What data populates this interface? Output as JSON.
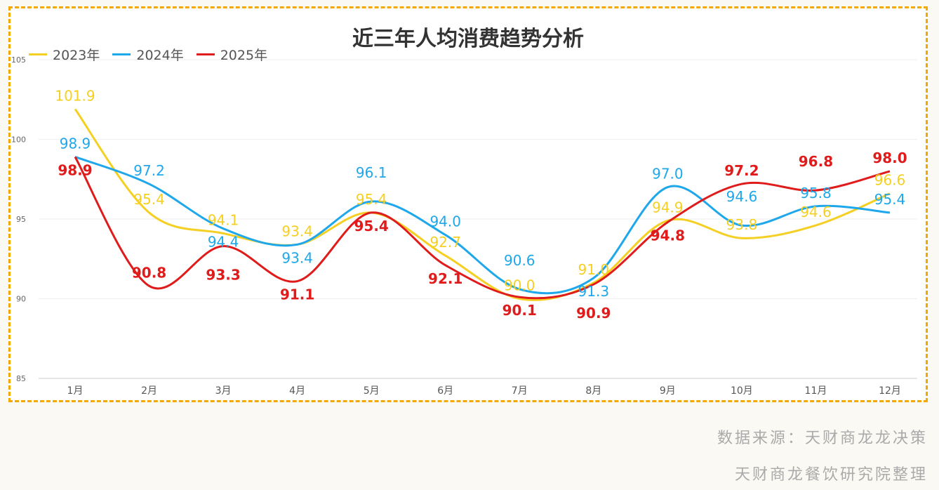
{
  "chart_data": {
    "type": "line",
    "title": "近三年人均消费趋势分析",
    "categories": [
      "1月",
      "2月",
      "3月",
      "4月",
      "5月",
      "6月",
      "7月",
      "8月",
      "9月",
      "10月",
      "11月",
      "12月"
    ],
    "ylim": [
      85,
      105
    ],
    "yticks": [
      85,
      90,
      95,
      100,
      105
    ],
    "grid": true,
    "legend_position": "top-left",
    "series": [
      {
        "name": "2023年",
        "color": "#f5cf22",
        "values": [
          101.9,
          95.4,
          94.1,
          93.4,
          95.4,
          92.7,
          90.0,
          91.0,
          94.9,
          93.8,
          94.6,
          96.6
        ]
      },
      {
        "name": "2024年",
        "color": "#1ea7ea",
        "values": [
          98.9,
          97.2,
          94.4,
          93.4,
          96.1,
          94.0,
          90.6,
          91.3,
          97.0,
          94.6,
          95.8,
          95.4
        ]
      },
      {
        "name": "2025年",
        "color": "#e01b1b",
        "values": [
          98.9,
          90.8,
          93.3,
          91.1,
          95.4,
          92.1,
          90.1,
          90.9,
          94.8,
          97.2,
          96.8,
          98.0
        ]
      }
    ]
  },
  "footer": {
    "source": "数据来源：天财商龙龙决策",
    "credit": "天财商龙餐饮研究院整理"
  }
}
